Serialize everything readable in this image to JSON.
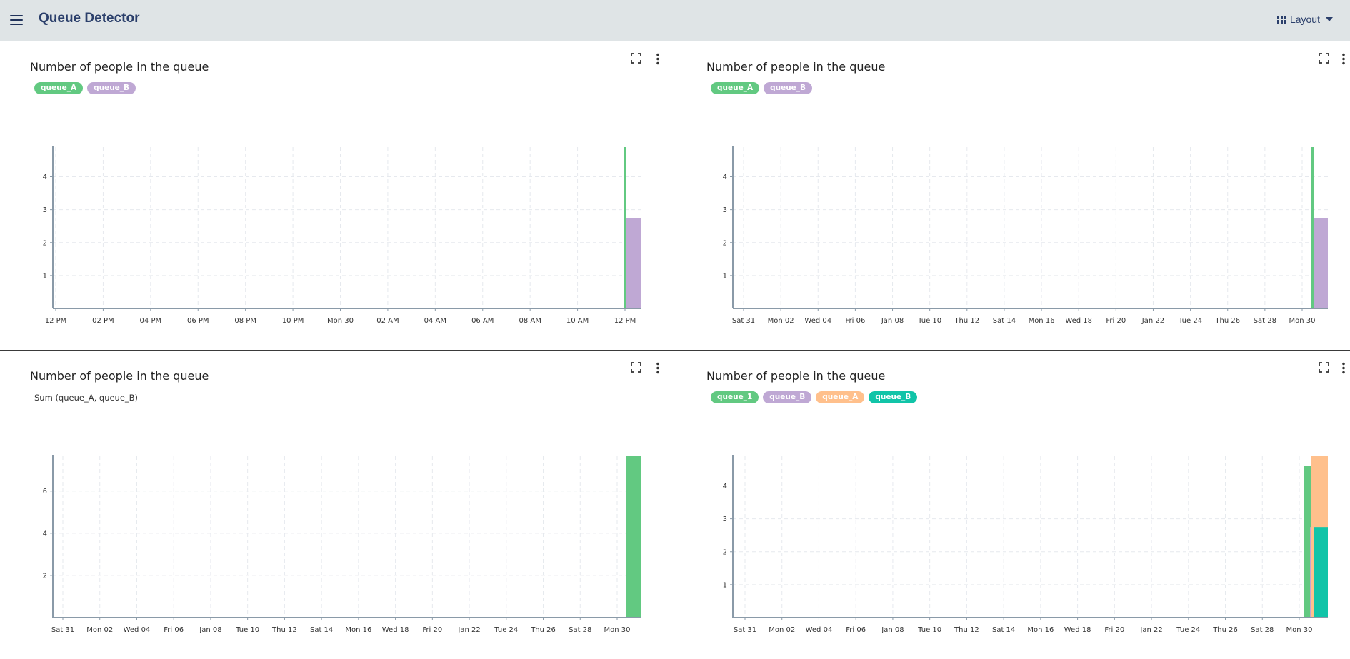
{
  "app": {
    "title": "Queue Detector",
    "layout_label": "Layout",
    "icons": {
      "menu": "hamburger-icon",
      "layout": "grid-icon",
      "caret": "caret-down-icon"
    }
  },
  "colors": {
    "appbar_bg": "#dfe4e6",
    "title": "#2b3f6b",
    "queue_A": "#62c981",
    "queue_B": "#bfa8d4",
    "queue_1": "#62c981",
    "queue_A_alt": "#ffc08c",
    "queue_B_alt": "#11c4a8"
  },
  "panels": [
    {
      "title": "Number of people in the queue",
      "legend": [
        {
          "label": "queue_A",
          "color": "#62c981"
        },
        {
          "label": "queue_B",
          "color": "#bfa8d4"
        }
      ],
      "sum_label": "",
      "icons": {
        "expand": "expand-icon",
        "more": "more-vert-icon"
      },
      "chart_data": {
        "type": "bar",
        "x": [
          "12 PM",
          "02 PM",
          "04 PM",
          "06 PM",
          "08 PM",
          "10 PM",
          "Mon 30",
          "02 AM",
          "04 AM",
          "06 AM",
          "08 AM",
          "10 AM",
          "12 PM"
        ],
        "y_ticks": [
          1,
          2,
          3,
          4
        ],
        "ylim": [
          0,
          4.9
        ],
        "grid": true,
        "series": [
          {
            "name": "queue_A",
            "color": "#62c981",
            "values": [
              {
                "x": "12 PM",
                "y": 4.9
              }
            ]
          },
          {
            "name": "queue_B",
            "color": "#bfa8d4",
            "values": [
              {
                "x": "12 PM",
                "y": 2.75
              }
            ]
          }
        ]
      }
    },
    {
      "title": "Number of people in the queue",
      "legend": [
        {
          "label": "queue_A",
          "color": "#62c981"
        },
        {
          "label": "queue_B",
          "color": "#bfa8d4"
        }
      ],
      "sum_label": "",
      "icons": {
        "expand": "expand-icon",
        "more": "more-vert-icon"
      },
      "chart_data": {
        "type": "bar",
        "x": [
          "Sat 31",
          "Mon 02",
          "Wed 04",
          "Fri 06",
          "Jan 08",
          "Tue 10",
          "Thu 12",
          "Sat 14",
          "Mon 16",
          "Wed 18",
          "Fri 20",
          "Jan 22",
          "Tue 24",
          "Thu 26",
          "Sat 28",
          "Mon 30"
        ],
        "y_ticks": [
          1,
          2,
          3,
          4
        ],
        "ylim": [
          0,
          4.9
        ],
        "grid": true,
        "series": [
          {
            "name": "queue_A",
            "color": "#62c981",
            "values": [
              {
                "x": "Mon 30",
                "y": 4.9
              }
            ]
          },
          {
            "name": "queue_B",
            "color": "#bfa8d4",
            "values": [
              {
                "x": "Mon 30",
                "y": 2.75
              }
            ]
          }
        ]
      }
    },
    {
      "title": "Number of people in the queue",
      "legend": [],
      "sum_label": "Sum (queue_A, queue_B)",
      "icons": {
        "expand": "expand-icon",
        "more": "more-vert-icon"
      },
      "chart_data": {
        "type": "bar",
        "x": [
          "Sat 31",
          "Mon 02",
          "Wed 04",
          "Fri 06",
          "Jan 08",
          "Tue 10",
          "Thu 12",
          "Sat 14",
          "Mon 16",
          "Wed 18",
          "Fri 20",
          "Jan 22",
          "Tue 24",
          "Thu 26",
          "Sat 28",
          "Mon 30"
        ],
        "y_ticks": [
          2,
          4,
          6
        ],
        "ylim": [
          0,
          7.65
        ],
        "grid": true,
        "series": [
          {
            "name": "Sum (queue_A, queue_B)",
            "color": "#62c981",
            "values": [
              {
                "x": "Mon 30",
                "y": 7.65
              }
            ]
          }
        ]
      }
    },
    {
      "title": "Number of people in the queue",
      "legend": [
        {
          "label": "queue_1",
          "color": "#62c981"
        },
        {
          "label": "queue_B",
          "color": "#bfa8d4"
        },
        {
          "label": "queue_A",
          "color": "#ffc08c"
        },
        {
          "label": "queue_B",
          "color": "#11c4a8"
        }
      ],
      "sum_label": "",
      "icons": {
        "expand": "expand-icon",
        "more": "more-vert-icon"
      },
      "chart_data": {
        "type": "bar",
        "x": [
          "Sat 31",
          "Mon 02",
          "Wed 04",
          "Fri 06",
          "Jan 08",
          "Tue 10",
          "Thu 12",
          "Sat 14",
          "Mon 16",
          "Wed 18",
          "Fri 20",
          "Jan 22",
          "Tue 24",
          "Thu 26",
          "Sat 28",
          "Mon 30"
        ],
        "y_ticks": [
          1,
          2,
          3,
          4
        ],
        "ylim": [
          0,
          4.9
        ],
        "grid": true,
        "series": [
          {
            "name": "queue_1",
            "color": "#62c981",
            "values": [
              {
                "x": "Mon 30",
                "y": 4.6
              }
            ]
          },
          {
            "name": "queue_B",
            "color": "#bfa8d4",
            "values": [
              {
                "x": "Mon 30",
                "y": 2.75
              }
            ]
          },
          {
            "name": "queue_A",
            "color": "#ffc08c",
            "values": [
              {
                "x": "Mon 30",
                "y": 4.9
              }
            ]
          },
          {
            "name": "queue_B",
            "color": "#11c4a8",
            "values": [
              {
                "x": "Mon 30",
                "y": 2.75
              }
            ]
          }
        ]
      }
    }
  ]
}
